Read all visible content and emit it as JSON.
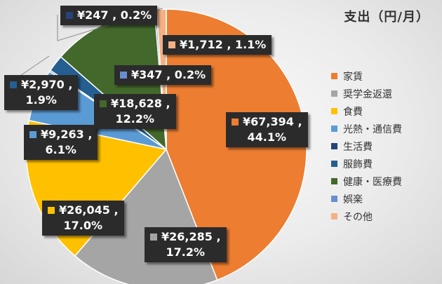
{
  "chart_data": {
    "type": "pie",
    "title": "支出（円/月）",
    "categories": [
      "家賃",
      "奨学金返還",
      "食費",
      "光熱・通信費",
      "生活費",
      "服飾費",
      "健康・医療費",
      "娯楽",
      "その他"
    ],
    "values": [
      67394,
      26285,
      26045,
      9263,
      247,
      2970,
      18628,
      347,
      1712
    ],
    "percentages": [
      "44.1%",
      "17.2%",
      "17.0%",
      "6.1%",
      "0.2%",
      "1.9%",
      "12.2%",
      "0.2%",
      "1.1%"
    ],
    "value_labels": [
      "¥67,394 ,",
      "¥26,285 ,",
      "¥26,045 ,",
      "¥9,263 ,",
      "¥247 , 0.2%",
      "¥2,970 ,",
      "¥18,628 ,",
      "¥347 , 0.2%",
      "¥1,712 , 1.1%"
    ],
    "percent_labels": [
      "44.1%",
      "17.2%",
      "17.0%",
      "6.1%",
      "",
      "1.9%",
      "12.2%",
      "",
      ""
    ],
    "colors": [
      "#ed7d31",
      "#a5a5a5",
      "#ffc000",
      "#5b9bd5",
      "#264478",
      "#255e91",
      "#43682b",
      "#698ed0",
      "#f4b183"
    ],
    "legend": [
      "家賃",
      "奨学金返還",
      "食費",
      "光熱・通信費",
      "生活費",
      "服飾費",
      "健康・医療費",
      "娯楽",
      "その他"
    ],
    "legend_position": "right"
  }
}
